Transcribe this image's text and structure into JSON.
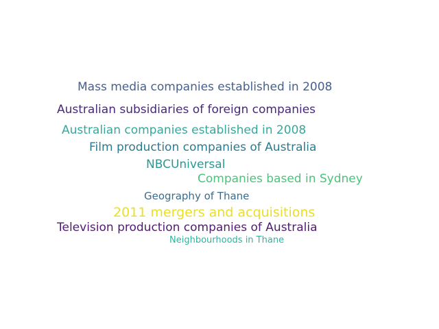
{
  "words": [
    {
      "text": "Mass media companies established in 2008",
      "color": "#46608f"
    },
    {
      "text": "Australian subsidiaries of foreign companies",
      "color": "#482878"
    },
    {
      "text": "Australian companies established in 2008",
      "color": "#35a89b"
    },
    {
      "text": "Film production companies of Australia",
      "color": "#2b7b8e"
    },
    {
      "text": "NBCUniversal",
      "color": "#279a93"
    },
    {
      "text": "Companies based in Sydney",
      "color": "#4cc27a"
    },
    {
      "text": "Geography of Thane",
      "color": "#3a6c8d"
    },
    {
      "text": "2011 mergers and acquisitions",
      "color": "#e9df28"
    },
    {
      "text": "Television production companies of Australia",
      "color": "#501b70"
    },
    {
      "text": "Neighbourhoods in Thane",
      "color": "#2fb39e"
    }
  ]
}
